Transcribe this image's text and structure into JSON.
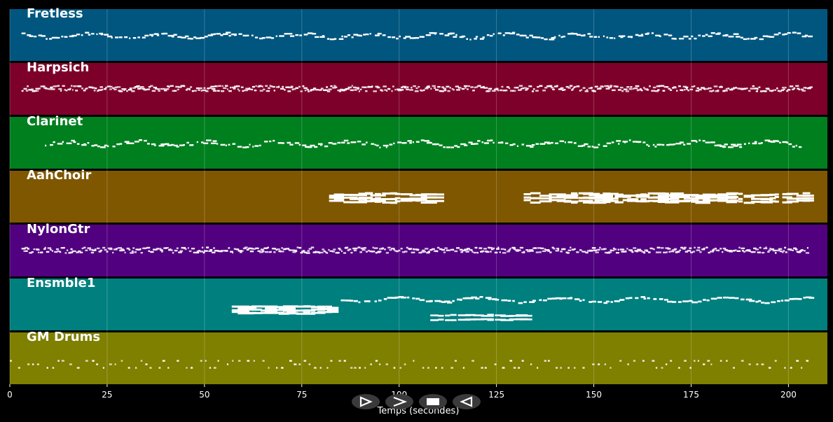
{
  "x_axis": {
    "label": "Temps (secondes)",
    "min": 0,
    "max": 210,
    "ticks": [
      0,
      25,
      50,
      75,
      100,
      125,
      150,
      175,
      200
    ]
  },
  "tracks": [
    {
      "name": "Fretless",
      "color": "#00567f",
      "pattern": "melody",
      "start": 3,
      "end": 205
    },
    {
      "name": "Harpsich",
      "color": "#7d002a",
      "pattern": "dense",
      "start": 3,
      "end": 206
    },
    {
      "name": "Clarinet",
      "color": "#007f1f",
      "pattern": "melody",
      "start": 9,
      "end": 203
    },
    {
      "name": "AahChoir",
      "color": "#7f5700",
      "pattern": "chords",
      "segments": [
        [
          82,
          108
        ],
        [
          132,
          206
        ]
      ]
    },
    {
      "name": "NylonGtr",
      "color": "#51007f",
      "pattern": "dense",
      "start": 3,
      "end": 205
    },
    {
      "name": "Ensmble1",
      "color": "#007f7f",
      "pattern": "ensemble",
      "segments": [
        [
          57,
          82
        ],
        [
          85,
          206
        ]
      ]
    },
    {
      "name": "GM Drums",
      "color": "#7f7f00",
      "pattern": "drums",
      "start": 0,
      "end": 205
    }
  ],
  "controls": [
    {
      "name": "play-button",
      "icon": "play-icon"
    },
    {
      "name": "forward-button",
      "icon": "forward-icon"
    },
    {
      "name": "stop-button",
      "icon": "stop-icon"
    },
    {
      "name": "rewind-button",
      "icon": "rewind-icon"
    }
  ]
}
